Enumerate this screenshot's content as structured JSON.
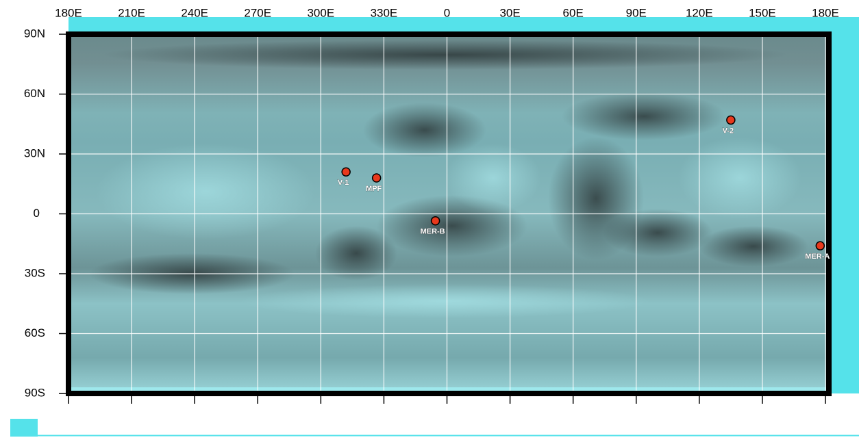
{
  "map": {
    "xlim": [
      -180,
      180
    ],
    "ylim": [
      -90,
      90
    ],
    "xticks": [
      {
        "value": -180,
        "label": "180E"
      },
      {
        "value": -150,
        "label": "210E"
      },
      {
        "value": -120,
        "label": "240E"
      },
      {
        "value": -90,
        "label": "270E"
      },
      {
        "value": -60,
        "label": "300E"
      },
      {
        "value": -30,
        "label": "330E"
      },
      0,
      {
        "value": 30,
        "label": "30E"
      },
      {
        "value": 60,
        "label": "60E"
      },
      {
        "value": 90,
        "label": "90E"
      },
      {
        "value": 120,
        "label": "120E"
      },
      {
        "value": 150,
        "label": "150E"
      },
      {
        "value": 180,
        "label": "180E"
      }
    ],
    "yticks": [
      {
        "value": 90,
        "label": "90N"
      },
      {
        "value": 60,
        "label": "60N"
      },
      {
        "value": 30,
        "label": "30N"
      },
      0,
      {
        "value": -30,
        "label": "30S"
      },
      {
        "value": -60,
        "label": "60S"
      },
      {
        "value": -90,
        "label": "90S"
      }
    ],
    "grid": true,
    "marker_color": "#e8391c",
    "sites": [
      {
        "name": "V-1",
        "lon": -48,
        "lat": 21
      },
      {
        "name": "MPF",
        "lon": -33.5,
        "lat": 18
      },
      {
        "name": "MER-B",
        "lon": -5.5,
        "lat": -3.5
      },
      {
        "name": "V-2",
        "lon": 135,
        "lat": 47
      },
      {
        "name": "MER-A",
        "lon": 177.5,
        "lat": -16
      }
    ]
  }
}
